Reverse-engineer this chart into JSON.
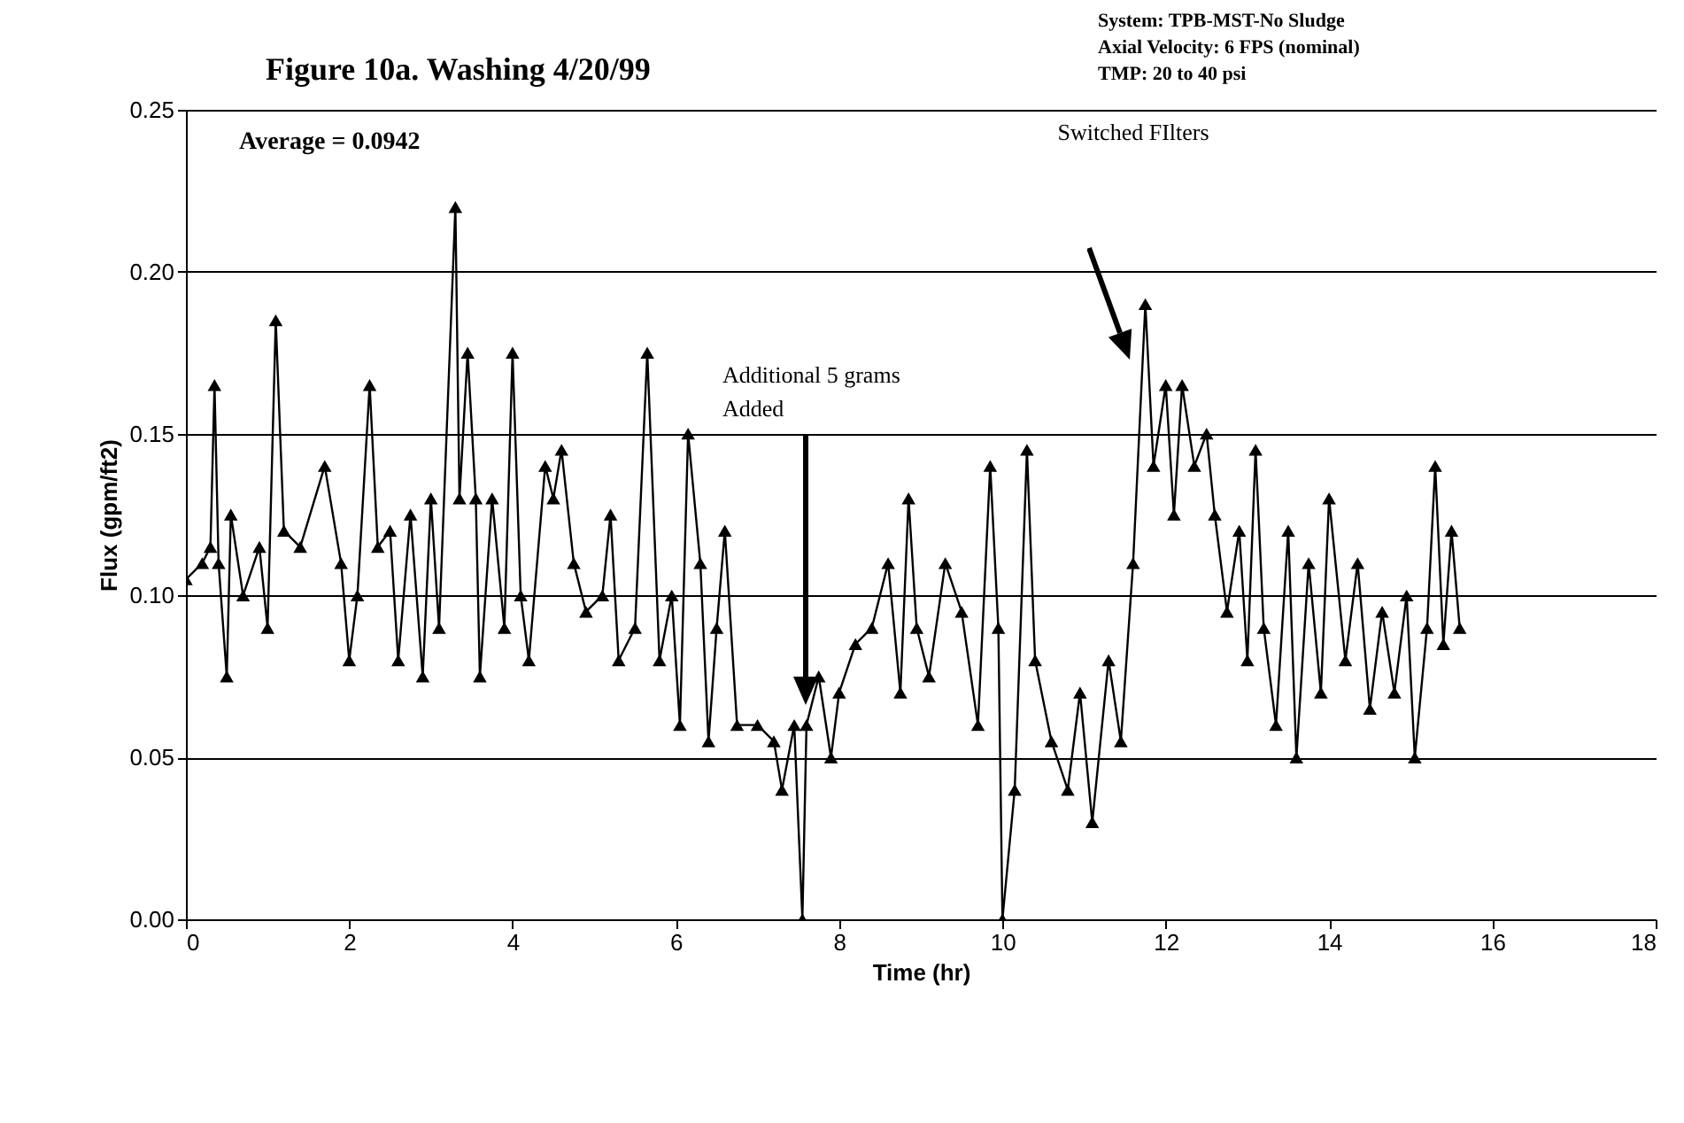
{
  "chart_data": {
    "type": "line",
    "title": "Figure 10a. Washing 4/20/99",
    "xlabel": "Time (hr)",
    "ylabel": "Flux (gpm/ft2)",
    "x": [
      0,
      0.2,
      0.3,
      0.35,
      0.4,
      0.5,
      0.55,
      0.7,
      0.9,
      1.0,
      1.1,
      1.2,
      1.4,
      1.7,
      1.9,
      2.0,
      2.1,
      2.25,
      2.35,
      2.5,
      2.6,
      2.75,
      2.9,
      3.0,
      3.1,
      3.3,
      3.35,
      3.45,
      3.55,
      3.6,
      3.75,
      3.9,
      4.0,
      4.1,
      4.2,
      4.4,
      4.5,
      4.6,
      4.75,
      4.9,
      5.1,
      5.2,
      5.3,
      5.5,
      5.65,
      5.8,
      5.95,
      6.05,
      6.15,
      6.3,
      6.4,
      6.5,
      6.6,
      6.75,
      7.0,
      7.2,
      7.3,
      7.45,
      7.55,
      7.6,
      7.75,
      7.9,
      8.0,
      8.2,
      8.4,
      8.6,
      8.75,
      8.85,
      8.95,
      9.1,
      9.3,
      9.5,
      9.7,
      9.85,
      9.95,
      10.0,
      10.15,
      10.3,
      10.4,
      10.6,
      10.8,
      10.95,
      11.1,
      11.3,
      11.45,
      11.6,
      11.75,
      11.85,
      12.0,
      12.1,
      12.2,
      12.35,
      12.5,
      12.6,
      12.75,
      12.9,
      13.0,
      13.1,
      13.2,
      13.35,
      13.5,
      13.6,
      13.75,
      13.9,
      14.0,
      14.2,
      14.35,
      14.5,
      14.65,
      14.8,
      14.95,
      15.05,
      15.2,
      15.3,
      15.4,
      15.5,
      15.6
    ],
    "series": [
      {
        "color": "#000000",
        "values": [
          0.105,
          0.11,
          0.115,
          0.165,
          0.11,
          0.075,
          0.125,
          0.1,
          0.115,
          0.09,
          0.185,
          0.12,
          0.115,
          0.14,
          0.11,
          0.08,
          0.1,
          0.165,
          0.115,
          0.12,
          0.08,
          0.125,
          0.075,
          0.13,
          0.09,
          0.22,
          0.13,
          0.175,
          0.13,
          0.075,
          0.13,
          0.09,
          0.175,
          0.1,
          0.08,
          0.14,
          0.13,
          0.145,
          0.11,
          0.095,
          0.1,
          0.125,
          0.08,
          0.09,
          0.175,
          0.08,
          0.1,
          0.06,
          0.15,
          0.11,
          0.055,
          0.09,
          0.12,
          0.06,
          0.06,
          0.055,
          0.04,
          0.06,
          0.0,
          0.06,
          0.075,
          0.05,
          0.07,
          0.085,
          0.09,
          0.11,
          0.07,
          0.13,
          0.09,
          0.075,
          0.11,
          0.095,
          0.06,
          0.14,
          0.09,
          0.0,
          0.04,
          0.145,
          0.08,
          0.055,
          0.04,
          0.07,
          0.03,
          0.08,
          0.055,
          0.11,
          0.19,
          0.14,
          0.165,
          0.125,
          0.165,
          0.14,
          0.15,
          0.125,
          0.095,
          0.12,
          0.08,
          0.145,
          0.09,
          0.06,
          0.12,
          0.05,
          0.11,
          0.07,
          0.13,
          0.08,
          0.11,
          0.065,
          0.095,
          0.07,
          0.1,
          0.05,
          0.09,
          0.14,
          0.085,
          0.12,
          0.09
        ]
      }
    ],
    "xlim": [
      0,
      18
    ],
    "xticks": [
      0,
      2,
      4,
      6,
      8,
      10,
      12,
      14,
      16,
      18
    ],
    "ylim": [
      0,
      0.25
    ],
    "yticks": [
      {
        "value": 0,
        "label": "0.00"
      },
      {
        "value": 0.05,
        "label": "0.05"
      },
      {
        "value": 0.1,
        "label": "0.10"
      },
      {
        "value": 0.15,
        "label": "0.15"
      },
      {
        "value": 0.2,
        "label": "0.20"
      },
      {
        "value": 0.25,
        "label": "0.25"
      }
    ],
    "grid": "y",
    "marker": "triangle",
    "line_style": "solid",
    "annotations": [
      "System: TPB-MST-No Sludge",
      "Axial Velocity: 6 FPS (nominal)",
      "TMP: 20 to 40 psi",
      "Average = 0.0942",
      "Additional 5 grams\nAdded",
      "Switched FIlters"
    ]
  }
}
